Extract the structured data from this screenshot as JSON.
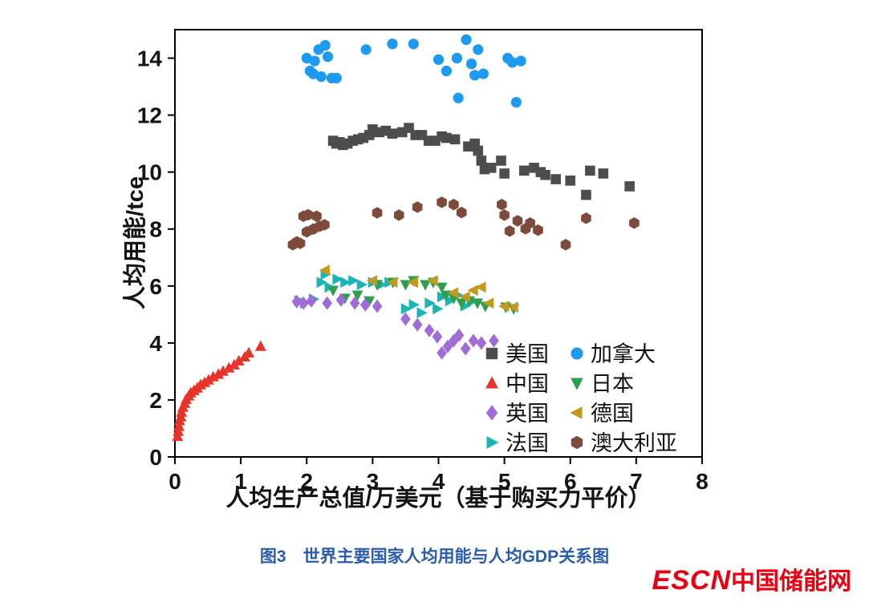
{
  "chart_data": {
    "type": "scatter",
    "title": "",
    "xlabel": "人均生产总值/万美元（基于购买力平价）",
    "ylabel": "人均用能/tce",
    "xlim": [
      0,
      8
    ],
    "ylim": [
      0,
      15
    ],
    "xticks": [
      0,
      1,
      2,
      3,
      4,
      5,
      6,
      7,
      8
    ],
    "yticks": [
      0,
      2,
      4,
      6,
      8,
      10,
      12,
      14
    ],
    "grid": false,
    "legend_position": "inside-bottom-right",
    "legend": {
      "columns": [
        [
          "美国",
          "中国",
          "英国",
          "法国"
        ],
        [
          "加拿大",
          "日本",
          "德国",
          "澳大利亚"
        ]
      ]
    },
    "series": [
      {
        "id": "usa",
        "name": "美国",
        "marker": "square",
        "color": "#4d4d4d",
        "points": [
          [
            2.4,
            11.1
          ],
          [
            2.45,
            11.0
          ],
          [
            2.5,
            11.05
          ],
          [
            2.55,
            10.95
          ],
          [
            2.62,
            11.0
          ],
          [
            2.7,
            11.1
          ],
          [
            2.78,
            11.15
          ],
          [
            2.86,
            11.2
          ],
          [
            2.95,
            11.3
          ],
          [
            3.0,
            11.5
          ],
          [
            3.1,
            11.4
          ],
          [
            3.2,
            11.45
          ],
          [
            3.3,
            11.35
          ],
          [
            3.45,
            11.4
          ],
          [
            3.55,
            11.55
          ],
          [
            3.65,
            11.3
          ],
          [
            3.75,
            11.3
          ],
          [
            3.85,
            11.1
          ],
          [
            3.95,
            11.1
          ],
          [
            4.05,
            11.25
          ],
          [
            4.12,
            11.2
          ],
          [
            4.25,
            11.15
          ],
          [
            4.45,
            10.9
          ],
          [
            4.55,
            11.0
          ],
          [
            4.6,
            10.75
          ],
          [
            4.65,
            10.4
          ],
          [
            4.7,
            10.1
          ],
          [
            4.8,
            10.15
          ],
          [
            4.95,
            10.4
          ],
          [
            5.0,
            9.95
          ],
          [
            5.3,
            10.05
          ],
          [
            5.45,
            10.15
          ],
          [
            5.55,
            10.0
          ],
          [
            5.62,
            9.9
          ],
          [
            5.78,
            9.75
          ],
          [
            6.0,
            9.7
          ],
          [
            6.24,
            9.2
          ],
          [
            6.3,
            10.05
          ],
          [
            6.5,
            9.95
          ],
          [
            6.9,
            9.5
          ]
        ]
      },
      {
        "id": "canada",
        "name": "加拿大",
        "marker": "circle",
        "color": "#1e9bf0",
        "points": [
          [
            2.0,
            14.0
          ],
          [
            2.05,
            13.55
          ],
          [
            2.1,
            13.45
          ],
          [
            2.12,
            13.9
          ],
          [
            2.18,
            14.3
          ],
          [
            2.22,
            13.35
          ],
          [
            2.28,
            14.45
          ],
          [
            2.32,
            14.05
          ],
          [
            2.38,
            13.3
          ],
          [
            2.45,
            13.3
          ],
          [
            2.9,
            14.3
          ],
          [
            3.3,
            14.5
          ],
          [
            3.62,
            14.5
          ],
          [
            4.0,
            13.95
          ],
          [
            4.12,
            13.55
          ],
          [
            4.28,
            14.0
          ],
          [
            4.3,
            12.6
          ],
          [
            4.42,
            14.65
          ],
          [
            4.5,
            13.8
          ],
          [
            4.55,
            13.4
          ],
          [
            4.6,
            14.3
          ],
          [
            4.68,
            13.45
          ],
          [
            5.05,
            14.0
          ],
          [
            5.12,
            13.85
          ],
          [
            5.18,
            12.45
          ],
          [
            5.25,
            13.9
          ]
        ]
      },
      {
        "id": "australia",
        "name": "澳大利亚",
        "marker": "hexagon",
        "color": "#7d4b3c",
        "points": [
          [
            1.79,
            7.45
          ],
          [
            1.85,
            7.55
          ],
          [
            1.9,
            7.5
          ],
          [
            1.95,
            8.45
          ],
          [
            2.0,
            7.9
          ],
          [
            2.02,
            8.5
          ],
          [
            2.1,
            8.0
          ],
          [
            2.15,
            8.45
          ],
          [
            2.2,
            8.1
          ],
          [
            2.27,
            8.15
          ],
          [
            3.07,
            8.57
          ],
          [
            3.4,
            8.49
          ],
          [
            3.68,
            8.77
          ],
          [
            4.05,
            8.94
          ],
          [
            4.23,
            8.86
          ],
          [
            4.35,
            8.58
          ],
          [
            4.96,
            8.86
          ],
          [
            5.0,
            8.49
          ],
          [
            5.08,
            7.93
          ],
          [
            5.2,
            8.29
          ],
          [
            5.32,
            8.01
          ],
          [
            5.39,
            8.21
          ],
          [
            5.51,
            7.96
          ],
          [
            5.93,
            7.45
          ],
          [
            6.24,
            8.38
          ],
          [
            6.97,
            8.21
          ]
        ]
      },
      {
        "id": "france",
        "name": "法国",
        "marker": "triangle-right",
        "color": "#1cb5b5",
        "points": [
          [
            1.88,
            5.48
          ],
          [
            1.97,
            5.4
          ],
          [
            2.1,
            5.54
          ],
          [
            2.22,
            6.13
          ],
          [
            2.28,
            6.41
          ],
          [
            2.34,
            5.96
          ],
          [
            2.46,
            6.24
          ],
          [
            2.58,
            6.13
          ],
          [
            2.7,
            6.19
          ],
          [
            2.83,
            6.05
          ],
          [
            3.0,
            6.13
          ],
          [
            3.13,
            6.05
          ],
          [
            3.25,
            6.13
          ],
          [
            3.5,
            5.2
          ],
          [
            3.62,
            5.34
          ],
          [
            3.74,
            5.06
          ],
          [
            3.86,
            5.4
          ],
          [
            3.98,
            5.2
          ],
          [
            4.05,
            5.62
          ],
          [
            4.17,
            5.48
          ],
          [
            4.29,
            5.68
          ],
          [
            4.4,
            5.3
          ],
          [
            4.5,
            5.45
          ]
        ]
      },
      {
        "id": "japan",
        "name": "日本",
        "marker": "triangle-down",
        "color": "#2f9e50",
        "points": [
          [
            2.4,
            5.85
          ],
          [
            2.58,
            5.57
          ],
          [
            2.77,
            5.68
          ],
          [
            2.95,
            5.48
          ],
          [
            3.07,
            6.05
          ],
          [
            3.31,
            6.13
          ],
          [
            3.5,
            6.05
          ],
          [
            3.62,
            6.19
          ],
          [
            3.8,
            6.05
          ],
          [
            3.92,
            6.13
          ],
          [
            4.05,
            5.96
          ],
          [
            4.11,
            5.68
          ],
          [
            4.23,
            5.57
          ],
          [
            4.35,
            5.4
          ],
          [
            4.47,
            5.48
          ],
          [
            4.59,
            5.4
          ],
          [
            4.71,
            5.29
          ],
          [
            5.02,
            5.26
          ],
          [
            5.14,
            5.2
          ]
        ]
      },
      {
        "id": "germany",
        "name": "德国",
        "marker": "triangle-left",
        "color": "#c49a1c",
        "points": [
          [
            2.28,
            6.55
          ],
          [
            3.0,
            6.19
          ],
          [
            3.31,
            6.13
          ],
          [
            3.62,
            6.13
          ],
          [
            3.92,
            6.19
          ],
          [
            4.23,
            5.76
          ],
          [
            4.41,
            5.62
          ],
          [
            4.53,
            5.85
          ],
          [
            4.65,
            5.96
          ],
          [
            4.77,
            5.4
          ],
          [
            5.0,
            5.29
          ],
          [
            5.14,
            5.26
          ]
        ]
      },
      {
        "id": "uk",
        "name": "英国",
        "marker": "diamond",
        "color": "#a06cd5",
        "points": [
          [
            1.85,
            5.45
          ],
          [
            1.95,
            5.4
          ],
          [
            2.07,
            5.48
          ],
          [
            2.31,
            5.4
          ],
          [
            2.52,
            5.51
          ],
          [
            2.73,
            5.4
          ],
          [
            2.89,
            5.34
          ],
          [
            3.07,
            5.29
          ],
          [
            3.5,
            4.84
          ],
          [
            3.68,
            4.64
          ],
          [
            3.86,
            4.44
          ],
          [
            3.98,
            4.22
          ],
          [
            4.05,
            3.65
          ],
          [
            4.14,
            3.88
          ],
          [
            4.23,
            4.08
          ],
          [
            4.31,
            4.27
          ],
          [
            4.41,
            3.8
          ],
          [
            4.53,
            4.08
          ],
          [
            4.65,
            4.0
          ],
          [
            4.84,
            4.08
          ]
        ]
      },
      {
        "id": "china",
        "name": "中国",
        "marker": "triangle-up",
        "color": "#e8332a",
        "points": [
          [
            0.04,
            0.72
          ],
          [
            0.05,
            0.9
          ],
          [
            0.06,
            1.07
          ],
          [
            0.07,
            1.27
          ],
          [
            0.09,
            1.41
          ],
          [
            0.1,
            1.57
          ],
          [
            0.12,
            1.74
          ],
          [
            0.15,
            1.88
          ],
          [
            0.17,
            2.02
          ],
          [
            0.21,
            2.14
          ],
          [
            0.24,
            2.25
          ],
          [
            0.29,
            2.33
          ],
          [
            0.34,
            2.42
          ],
          [
            0.39,
            2.53
          ],
          [
            0.45,
            2.61
          ],
          [
            0.51,
            2.7
          ],
          [
            0.58,
            2.81
          ],
          [
            0.66,
            2.9
          ],
          [
            0.73,
            3.01
          ],
          [
            0.82,
            3.12
          ],
          [
            0.9,
            3.23
          ],
          [
            0.97,
            3.37
          ],
          [
            1.06,
            3.51
          ],
          [
            1.12,
            3.65
          ],
          [
            1.3,
            3.88
          ]
        ]
      }
    ]
  },
  "caption": {
    "text": "图3　世界主要国家人均用能与人均GDP关系图",
    "color": "#2a5caa"
  },
  "watermark": {
    "text_en": "ESCN",
    "text_zh": "中国储能网",
    "color": "#e60012"
  }
}
